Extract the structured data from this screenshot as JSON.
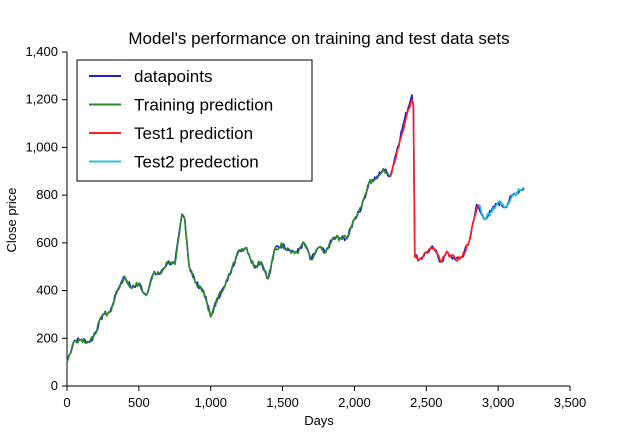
{
  "chart_data": {
    "type": "line",
    "title": "Model's performance on training and test data sets",
    "xlabel": "Days",
    "ylabel": "Close price",
    "xlim": [
      0,
      3500
    ],
    "ylim": [
      0,
      1400
    ],
    "xticks": [
      0,
      500,
      1000,
      1500,
      2000,
      2500,
      3000,
      3500
    ],
    "xtick_labels": [
      "0",
      "500",
      "1,000",
      "1,500",
      "2,000",
      "2,500",
      "3,000",
      "3,500"
    ],
    "yticks": [
      0,
      200,
      400,
      600,
      800,
      1000,
      1200,
      1400
    ],
    "ytick_labels": [
      "0",
      "200",
      "400",
      "600",
      "800",
      "1,000",
      "1,200",
      "1,400"
    ],
    "grid": false,
    "legend_position": "top-left",
    "series": [
      {
        "name": "datapoints",
        "color": "#1f1fd6",
        "x": [
          0,
          50,
          100,
          150,
          180,
          250,
          300,
          350,
          400,
          450,
          500,
          550,
          600,
          650,
          700,
          750,
          800,
          820,
          850,
          900,
          950,
          1000,
          1050,
          1100,
          1150,
          1200,
          1250,
          1300,
          1350,
          1400,
          1450,
          1500,
          1550,
          1600,
          1650,
          1700,
          1750,
          1800,
          1850,
          1900,
          1950,
          2000,
          2050,
          2100,
          2150,
          2200,
          2250,
          2300,
          2350,
          2400,
          2410,
          2420,
          2450,
          2500,
          2550,
          2600,
          2650,
          2700,
          2750,
          2800,
          2850,
          2900,
          2950,
          3000,
          3050,
          3100,
          3150,
          3180
        ],
        "y": [
          100,
          190,
          195,
          185,
          200,
          300,
          310,
          400,
          460,
          410,
          430,
          380,
          470,
          470,
          520,
          510,
          720,
          700,
          500,
          430,
          400,
          290,
          370,
          420,
          500,
          570,
          580,
          500,
          520,
          450,
          580,
          590,
          570,
          560,
          600,
          530,
          580,
          560,
          620,
          620,
          620,
          700,
          750,
          850,
          870,
          910,
          880,
          1000,
          1120,
          1220,
          1180,
          550,
          530,
          560,
          580,
          520,
          560,
          530,
          540,
          610,
          760,
          700,
          730,
          770,
          750,
          800,
          820,
          830
        ]
      },
      {
        "name": "Training prediction",
        "color": "#2a8a2a",
        "x": [
          0,
          50,
          100,
          150,
          180,
          250,
          300,
          350,
          400,
          450,
          500,
          550,
          600,
          650,
          700,
          750,
          800,
          820,
          850,
          900,
          950,
          1000,
          1050,
          1100,
          1150,
          1200,
          1250,
          1300,
          1350,
          1400,
          1450,
          1500,
          1550,
          1600,
          1650,
          1700,
          1750,
          1800,
          1850,
          1900,
          1950,
          2000,
          2050,
          2100,
          2150,
          2200,
          2250
        ],
        "y": [
          100,
          190,
          195,
          185,
          200,
          300,
          310,
          400,
          460,
          410,
          430,
          380,
          470,
          470,
          520,
          510,
          720,
          700,
          500,
          430,
          400,
          290,
          370,
          420,
          500,
          570,
          580,
          500,
          520,
          450,
          580,
          590,
          570,
          560,
          600,
          530,
          580,
          560,
          620,
          620,
          620,
          700,
          750,
          850,
          870,
          910,
          880
        ]
      },
      {
        "name": "Test1 prediction",
        "color": "#ff1f1f",
        "x": [
          2250,
          2300,
          2350,
          2400,
          2410,
          2420,
          2450,
          2500,
          2550,
          2600,
          2650,
          2700,
          2750,
          2800,
          2850,
          2870
        ],
        "y": [
          880,
          990,
          1100,
          1200,
          1170,
          540,
          530,
          560,
          580,
          520,
          560,
          530,
          540,
          610,
          740,
          760
        ]
      },
      {
        "name": "Test2 predection",
        "color": "#1fc6d6",
        "x": [
          2870,
          2900,
          2950,
          3000,
          3050,
          3100,
          3150,
          3180
        ],
        "y": [
          760,
          700,
          730,
          770,
          750,
          800,
          820,
          830
        ]
      }
    ]
  }
}
